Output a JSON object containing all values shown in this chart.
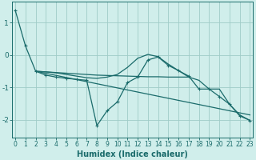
{
  "bg_color": "#d0eeeb",
  "grid_color": "#a0ccc8",
  "line_color": "#1a6b6b",
  "xlabel": "Humidex (Indice chaleur)",
  "xlabel_fontsize": 7,
  "tick_fontsize": 5.5,
  "xlim": [
    -0.3,
    23.3
  ],
  "ylim": [
    -2.55,
    1.65
  ],
  "yticks": [
    -2,
    -1,
    0,
    1
  ],
  "xticks": [
    0,
    1,
    2,
    3,
    4,
    5,
    6,
    7,
    8,
    9,
    10,
    11,
    12,
    13,
    14,
    15,
    16,
    17,
    18,
    19,
    20,
    21,
    22,
    23
  ],
  "s1x": [
    0,
    1,
    2,
    3,
    4,
    5,
    6,
    7,
    8,
    9,
    10,
    11,
    12,
    13,
    14,
    15,
    16,
    17,
    18,
    19,
    20,
    21,
    22,
    23
  ],
  "s1y": [
    1.38,
    0.28,
    -0.5,
    -0.62,
    -0.68,
    -0.72,
    -0.75,
    -0.78,
    -2.18,
    -1.72,
    -1.45,
    -0.85,
    -0.68,
    -0.15,
    -0.06,
    -0.32,
    -0.48,
    -0.65,
    -1.05,
    -1.05,
    -1.28,
    -1.52,
    -1.88,
    -2.02
  ],
  "s2x": [
    2,
    3,
    4,
    5,
    6,
    7,
    8,
    9,
    10,
    11,
    12,
    13,
    14,
    15,
    16,
    17
  ],
  "s2y": [
    -0.5,
    -0.52,
    -0.54,
    -0.56,
    -0.58,
    -0.6,
    -0.62,
    -0.63,
    -0.64,
    -0.65,
    -0.66,
    -0.67,
    -0.67,
    -0.68,
    -0.68,
    -0.68
  ],
  "s3x": [
    2,
    23
  ],
  "s3y": [
    -0.5,
    -1.85
  ],
  "s4x": [
    2,
    3,
    4,
    5,
    6,
    7,
    8,
    9,
    10,
    11,
    12,
    13,
    14,
    15,
    16,
    17,
    18,
    19,
    20,
    21,
    22,
    23
  ],
  "s4y": [
    -0.5,
    -0.52,
    -0.55,
    -0.6,
    -0.65,
    -0.7,
    -0.72,
    -0.68,
    -0.6,
    -0.38,
    -0.1,
    0.02,
    -0.05,
    -0.28,
    -0.48,
    -0.68,
    -0.78,
    -1.05,
    -1.05,
    -1.52,
    -1.85,
    -2.02
  ]
}
